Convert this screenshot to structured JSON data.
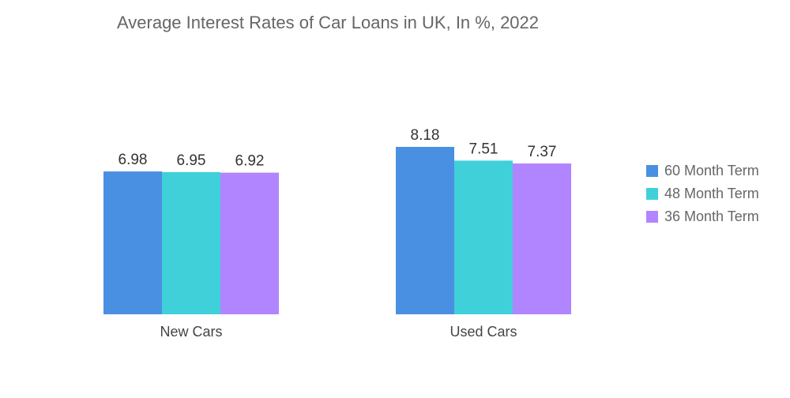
{
  "chart_data": {
    "type": "bar",
    "title": "Average Interest Rates of Car Loans in UK, In %, 2022",
    "categories": [
      "New Cars",
      "Used Cars"
    ],
    "series": [
      {
        "name": "60 Month Term",
        "color": "#4a90e2",
        "values": [
          6.98,
          8.18
        ],
        "labels": [
          "6.98",
          "8.18"
        ]
      },
      {
        "name": "48 Month Term",
        "color": "#40d0da",
        "values": [
          6.95,
          7.51
        ],
        "labels": [
          "6.95",
          "7.51"
        ]
      },
      {
        "name": "36 Month Term",
        "color": "#b185ff",
        "values": [
          6.92,
          7.37
        ],
        "labels": [
          "6.92",
          "7.37"
        ]
      }
    ],
    "xlabel": "",
    "ylabel": "",
    "ylim": [
      0,
      8.18
    ],
    "grid": false,
    "legend_position": "right"
  }
}
